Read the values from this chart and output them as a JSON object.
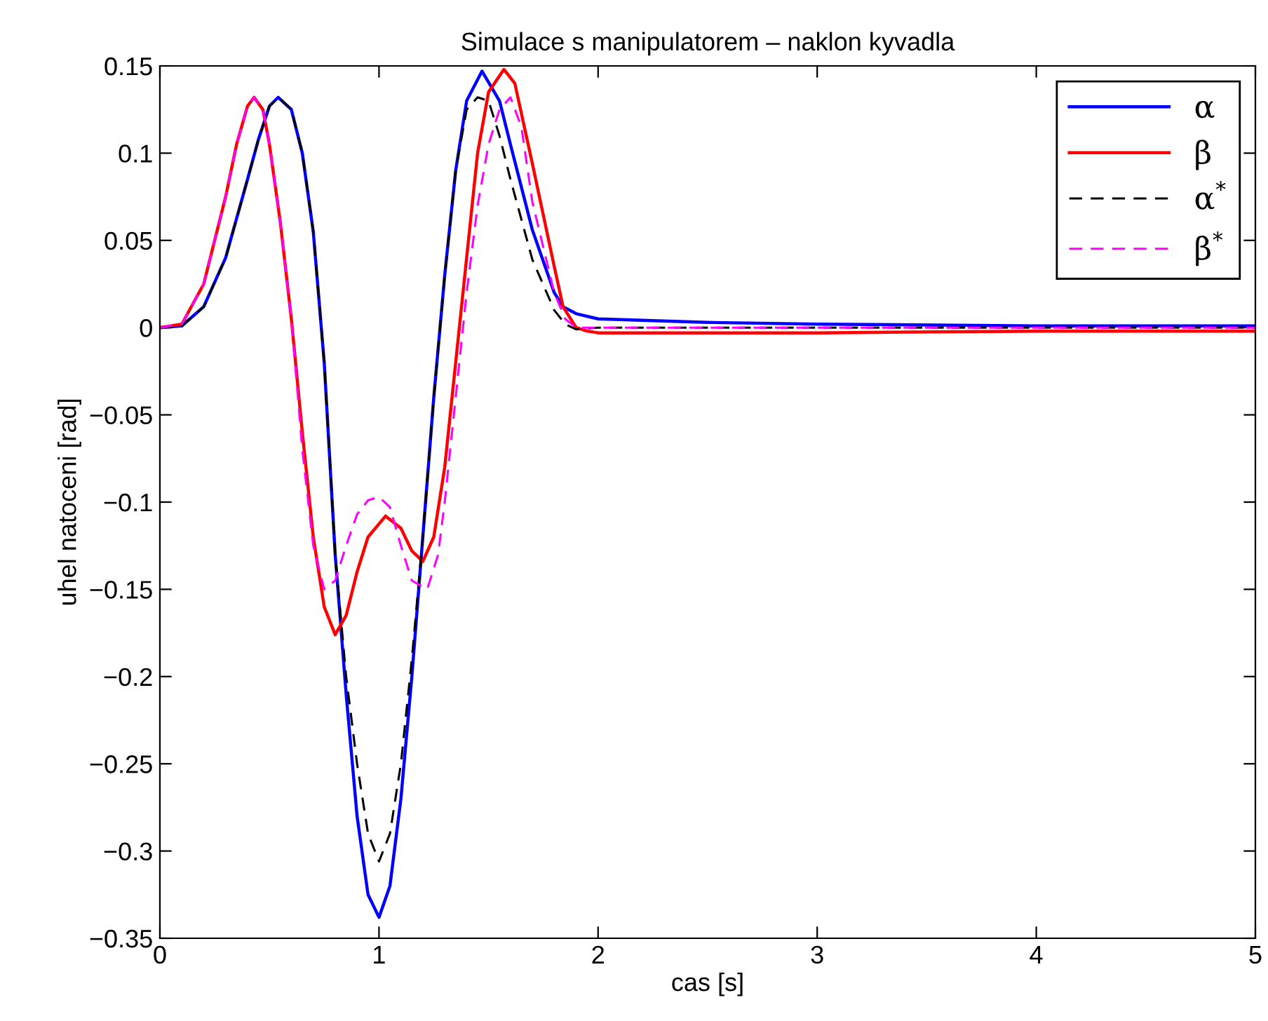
{
  "chart_data": {
    "type": "line",
    "title": "Simulace s manipulatorem – naklon kyvadla",
    "xlabel": "cas [s]",
    "ylabel": "uhel natoceni [rad]",
    "xlim": [
      0,
      5
    ],
    "xticks": [
      0,
      1,
      2,
      3,
      4,
      5
    ],
    "ylim": [
      -0.35,
      0.15
    ],
    "yticks": [
      {
        "value": -0.35,
        "label": "−0.35"
      },
      {
        "value": -0.3,
        "label": "−0.3"
      },
      {
        "value": -0.25,
        "label": "−0.25"
      },
      {
        "value": -0.2,
        "label": "−0.2"
      },
      {
        "value": -0.15,
        "label": "−0.15"
      },
      {
        "value": -0.1,
        "label": "−0.1"
      },
      {
        "value": -0.05,
        "label": "−0.05"
      },
      0,
      0.05,
      0.1,
      0.15
    ],
    "grid": false,
    "legend": "top right",
    "marker": "none",
    "series": [
      {
        "name": "α",
        "color": "#0000ff",
        "line_style": "solid",
        "x": [
          0,
          0.1,
          0.2,
          0.3,
          0.4,
          0.45,
          0.5,
          0.54,
          0.6,
          0.65,
          0.7,
          0.75,
          0.8,
          0.85,
          0.9,
          0.95,
          1.0,
          1.05,
          1.1,
          1.15,
          1.2,
          1.25,
          1.3,
          1.35,
          1.4,
          1.47,
          1.55,
          1.6,
          1.7,
          1.8,
          1.84,
          1.9,
          2.0,
          2.5,
          3,
          4,
          5
        ],
        "values": [
          0,
          0.001,
          0.012,
          0.04,
          0.085,
          0.108,
          0.127,
          0.132,
          0.125,
          0.1,
          0.055,
          -0.02,
          -0.13,
          -0.21,
          -0.28,
          -0.325,
          -0.338,
          -0.32,
          -0.27,
          -0.2,
          -0.12,
          -0.04,
          0.03,
          0.09,
          0.13,
          0.147,
          0.13,
          0.105,
          0.056,
          0.02,
          0.012,
          0.008,
          0.005,
          0.003,
          0.002,
          0.001,
          0.001
        ]
      },
      {
        "name": "β",
        "color": "#ff0000",
        "line_style": "solid",
        "x": [
          0,
          0.1,
          0.2,
          0.3,
          0.35,
          0.4,
          0.43,
          0.47,
          0.5,
          0.55,
          0.6,
          0.65,
          0.7,
          0.75,
          0.8,
          0.85,
          0.9,
          0.95,
          1.03,
          1.1,
          1.15,
          1.2,
          1.25,
          1.3,
          1.35,
          1.4,
          1.45,
          1.5,
          1.57,
          1.62,
          1.7,
          1.8,
          1.84,
          1.9,
          1.95,
          2.0,
          3,
          4,
          5
        ],
        "values": [
          0,
          0.002,
          0.025,
          0.075,
          0.105,
          0.127,
          0.132,
          0.125,
          0.105,
          0.06,
          0.005,
          -0.06,
          -0.12,
          -0.16,
          -0.176,
          -0.165,
          -0.14,
          -0.12,
          -0.108,
          -0.115,
          -0.128,
          -0.134,
          -0.12,
          -0.08,
          -0.02,
          0.04,
          0.1,
          0.135,
          0.148,
          0.14,
          0.094,
          0.035,
          0.012,
          0.0,
          -0.002,
          -0.003,
          -0.003,
          -0.002,
          -0.002
        ]
      },
      {
        "name": "α$^{*}$",
        "color": "#000000",
        "line_style": "dashed",
        "x": [
          0,
          0.1,
          0.2,
          0.3,
          0.4,
          0.45,
          0.5,
          0.54,
          0.6,
          0.65,
          0.7,
          0.75,
          0.8,
          0.85,
          0.9,
          0.95,
          1.0,
          1.05,
          1.1,
          1.15,
          1.2,
          1.25,
          1.3,
          1.35,
          1.4,
          1.45,
          1.5,
          1.55,
          1.6,
          1.7,
          1.8,
          1.85,
          1.9,
          2.0,
          5
        ],
        "values": [
          0,
          0.001,
          0.012,
          0.04,
          0.085,
          0.108,
          0.127,
          0.132,
          0.125,
          0.1,
          0.055,
          -0.02,
          -0.13,
          -0.2,
          -0.25,
          -0.29,
          -0.306,
          -0.29,
          -0.25,
          -0.19,
          -0.12,
          -0.04,
          0.03,
          0.09,
          0.125,
          0.132,
          0.13,
          0.11,
          0.085,
          0.039,
          0.01,
          0.002,
          -0.001,
          0,
          0
        ]
      },
      {
        "name": "β$^{*}$",
        "color": "#ff00ff",
        "line_style": "dashed",
        "x": [
          0,
          0.1,
          0.2,
          0.3,
          0.35,
          0.4,
          0.43,
          0.47,
          0.5,
          0.55,
          0.6,
          0.65,
          0.7,
          0.75,
          0.8,
          0.85,
          0.9,
          0.95,
          1.0,
          1.05,
          1.1,
          1.15,
          1.22,
          1.27,
          1.3,
          1.35,
          1.4,
          1.45,
          1.5,
          1.55,
          1.6,
          1.65,
          1.7,
          1.8,
          1.85,
          1.9,
          5
        ],
        "values": [
          0,
          0.002,
          0.025,
          0.075,
          0.105,
          0.127,
          0.132,
          0.125,
          0.105,
          0.06,
          0.005,
          -0.07,
          -0.125,
          -0.15,
          -0.145,
          -0.125,
          -0.107,
          -0.099,
          -0.097,
          -0.103,
          -0.125,
          -0.145,
          -0.15,
          -0.13,
          -0.1,
          -0.04,
          0.02,
          0.07,
          0.105,
          0.125,
          0.132,
          0.115,
          0.072,
          0.02,
          0.005,
          0,
          0
        ]
      }
    ]
  }
}
